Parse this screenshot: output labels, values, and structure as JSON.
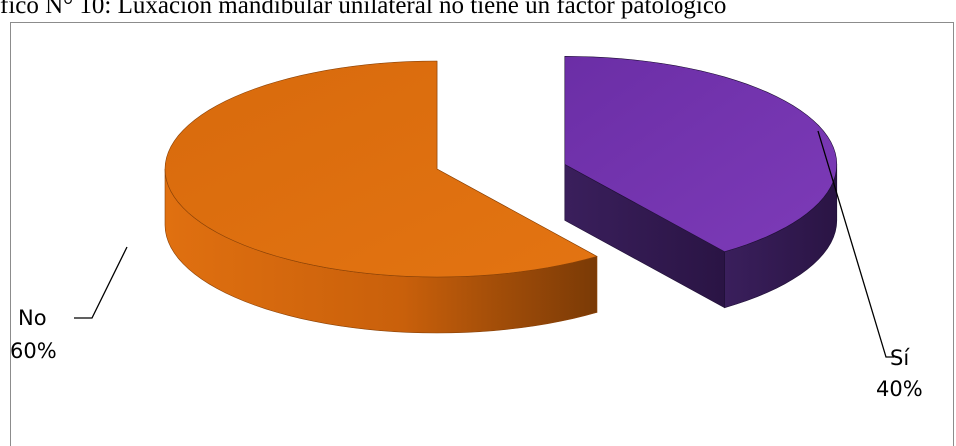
{
  "chart_data": {
    "type": "pie",
    "style": "3d-exploded",
    "title": "fico N° 10: Luxación mandibular unilateral no tiene un factor patológico",
    "categories": [
      "Sí",
      "No"
    ],
    "values": [
      40,
      60
    ],
    "percent_labels": [
      "40%",
      "60%"
    ],
    "colors": [
      "#7030a0",
      "#e46c0a"
    ],
    "legend": "none"
  }
}
